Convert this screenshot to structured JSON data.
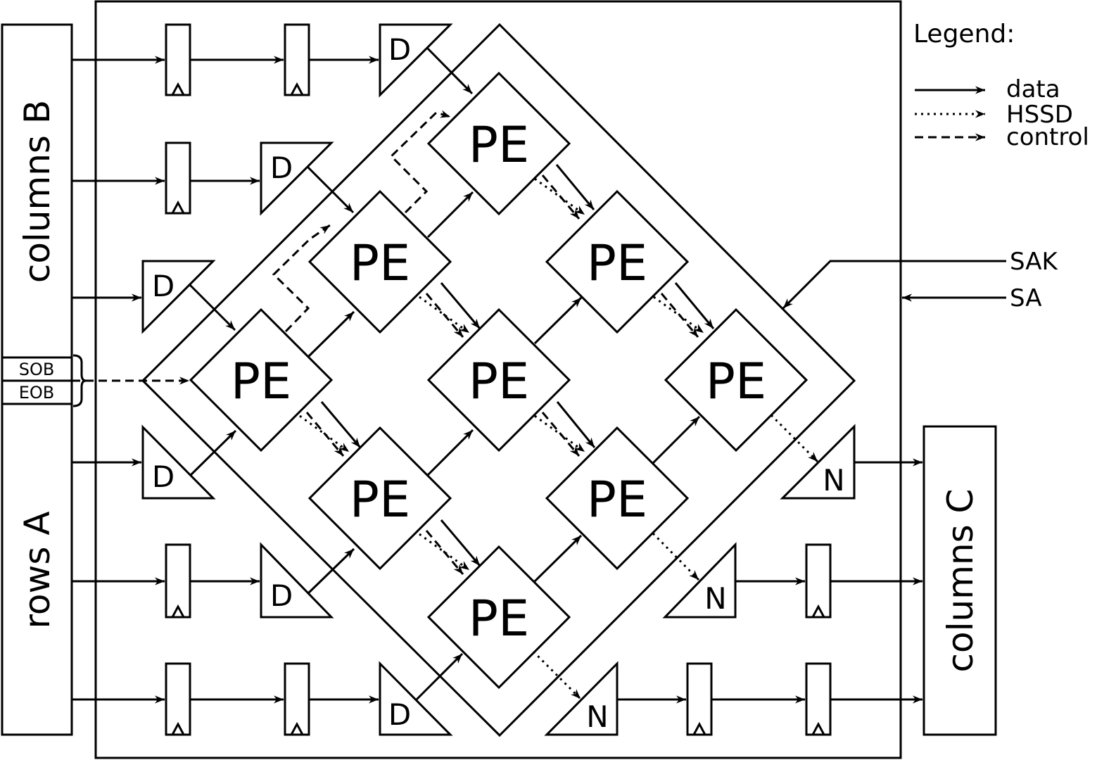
{
  "legend": {
    "title": "Legend:",
    "data": "data",
    "hssd": "HSSD",
    "control": "control"
  },
  "side_labels": {
    "columns_b": "columns B",
    "rows_a": "rows A",
    "columns_c": "columns C",
    "sob": "SOB",
    "eob": "EOB"
  },
  "signals": {
    "sak": "SAK",
    "sa": "SA"
  },
  "pe_label": "PE",
  "delay_label": "D",
  "n_label": "N",
  "colors": {
    "stroke": "#000000",
    "background": "#ffffff"
  }
}
